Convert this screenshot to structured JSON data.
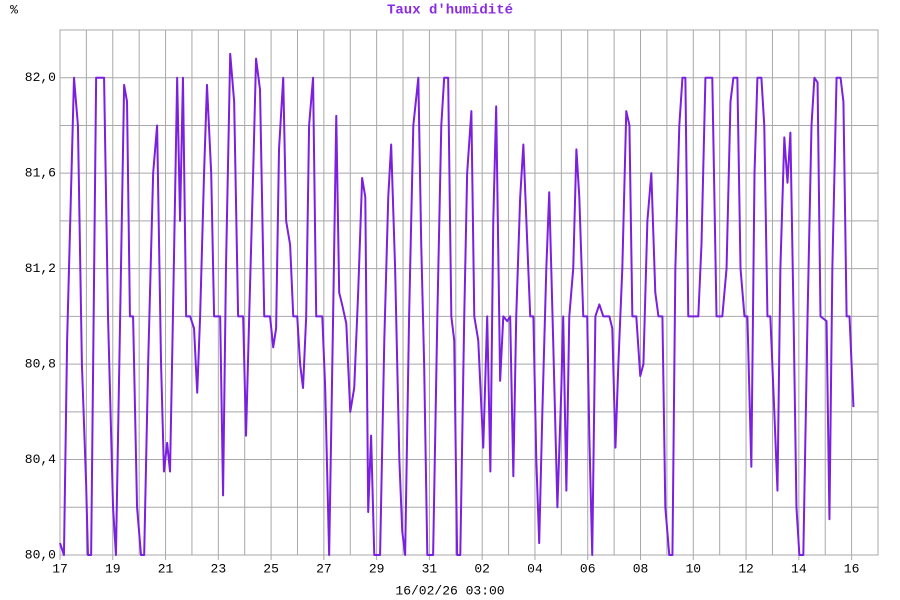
{
  "chart_data": {
    "type": "line",
    "title": "Taux d'humidité",
    "y_unit": "%",
    "xlabel": "16/02/26 03:00",
    "xlim": [
      0,
      31
    ],
    "ylim": [
      80,
      82.2
    ],
    "xticks": [
      {
        "value": 0,
        "label": "17"
      },
      {
        "value": 2,
        "label": "19"
      },
      {
        "value": 4,
        "label": "21"
      },
      {
        "value": 6,
        "label": "23"
      },
      {
        "value": 8,
        "label": "25"
      },
      {
        "value": 10,
        "label": "27"
      },
      {
        "value": 12,
        "label": "29"
      },
      {
        "value": 14,
        "label": "31"
      },
      {
        "value": 16,
        "label": "02"
      },
      {
        "value": 18,
        "label": "04"
      },
      {
        "value": 20,
        "label": "06"
      },
      {
        "value": 22,
        "label": "08"
      },
      {
        "value": 24,
        "label": "10"
      },
      {
        "value": 26,
        "label": "12"
      },
      {
        "value": 28,
        "label": "14"
      },
      {
        "value": 30,
        "label": "16"
      }
    ],
    "xgrid": [
      1,
      3,
      5,
      7,
      9,
      11,
      13,
      15,
      17,
      19,
      21,
      23,
      25,
      27,
      29,
      31
    ],
    "yticks": [
      {
        "value": 80,
        "label": "80,0"
      },
      {
        "value": 80.4,
        "label": "80,4"
      },
      {
        "value": 80.8,
        "label": "80,8"
      },
      {
        "value": 81.2,
        "label": "81,2"
      },
      {
        "value": 81.6,
        "label": "81,6"
      },
      {
        "value": 82,
        "label": "82,0"
      }
    ],
    "ygrid": [
      80.2,
      80.6,
      81.0,
      81.4,
      81.8,
      82.2
    ],
    "grid": true,
    "x": [
      0,
      0.15,
      0.27,
      0.53,
      0.68,
      0.83,
      0.99,
      1.06,
      1.18,
      1.37,
      1.67,
      1.82,
      2.01,
      2.12,
      2.28,
      2.43,
      2.54,
      2.65,
      2.77,
      2.92,
      3.07,
      3.19,
      3.34,
      3.53,
      3.68,
      3.83,
      3.94,
      4.06,
      4.17,
      4.28,
      4.44,
      4.55,
      4.66,
      4.78,
      4.93,
      5.08,
      5.2,
      5.31,
      5.46,
      5.57,
      5.73,
      5.84,
      6.07,
      6.18,
      6.29,
      6.45,
      6.6,
      6.75,
      6.94,
      7.05,
      7.17,
      7.32,
      7.43,
      7.58,
      7.74,
      7.96,
      8.08,
      8.19,
      8.3,
      8.46,
      8.57,
      8.72,
      8.84,
      8.99,
      9.1,
      9.21,
      9.33,
      9.44,
      9.59,
      9.71,
      9.94,
      10.05,
      10.2,
      10.35,
      10.47,
      10.58,
      10.69,
      10.85,
      11.0,
      11.15,
      11.3,
      11.45,
      11.57,
      11.68,
      11.79,
      11.91,
      12.13,
      12.29,
      12.44,
      12.55,
      12.7,
      12.86,
      12.97,
      13.08,
      13.23,
      13.39,
      13.58,
      13.69,
      13.8,
      13.92,
      14.14,
      14.3,
      14.45,
      14.56,
      14.71,
      14.83,
      14.94,
      15.05,
      15.17,
      15.32,
      15.43,
      15.59,
      15.7,
      15.85,
      16.04,
      16.19,
      16.31,
      16.42,
      16.53,
      16.68,
      16.8,
      16.95,
      17.06,
      17.18,
      17.29,
      17.44,
      17.56,
      17.71,
      17.82,
      17.94,
      18.05,
      18.16,
      18.28,
      18.43,
      18.54,
      18.69,
      18.85,
      19.0,
      19.07,
      19.19,
      19.3,
      19.45,
      19.57,
      19.68,
      19.83,
      19.98,
      20.06,
      20.17,
      20.29,
      20.44,
      20.59,
      20.82,
      20.93,
      21.05,
      21.16,
      21.31,
      21.46,
      21.58,
      21.69,
      21.84,
      21.99,
      22.11,
      22.26,
      22.41,
      22.56,
      22.68,
      22.83,
      22.94,
      23.09,
      23.21,
      23.32,
      23.47,
      23.59,
      23.7,
      23.81,
      24.19,
      24.31,
      24.46,
      24.72,
      24.88,
      25.1,
      25.26,
      25.41,
      25.52,
      25.67,
      25.79,
      25.94,
      26.05,
      26.2,
      26.32,
      26.43,
      26.58,
      26.69,
      26.81,
      26.92,
      27.07,
      27.19,
      27.3,
      27.45,
      27.57,
      27.68,
      27.8,
      27.91,
      28.02,
      28.17,
      28.33,
      28.48,
      28.59,
      28.71,
      28.82,
      29.05,
      29.16,
      29.27,
      29.43,
      29.58,
      29.69,
      29.81,
      29.92,
      30.07
    ],
    "series": [
      {
        "color": "#7b1fe0",
        "values": [
          80.05,
          80.0,
          80.9,
          82.0,
          81.8,
          80.8,
          80.3,
          80.0,
          80.0,
          82.0,
          82.0,
          81.0,
          80.2,
          80.0,
          81.0,
          81.97,
          81.9,
          81.0,
          81.0,
          80.2,
          80.0,
          80.0,
          80.8,
          81.6,
          81.8,
          80.8,
          80.35,
          80.47,
          80.35,
          81.0,
          82.0,
          81.4,
          82.0,
          81.0,
          81.0,
          80.95,
          80.68,
          81.0,
          81.6,
          81.97,
          81.6,
          81.0,
          81.0,
          80.25,
          81.2,
          82.1,
          81.9,
          81.0,
          81.0,
          80.5,
          81.0,
          81.6,
          82.08,
          81.95,
          81.0,
          81.0,
          80.87,
          80.95,
          81.7,
          82.0,
          81.4,
          81.3,
          81.0,
          81.0,
          80.8,
          80.7,
          81.0,
          81.8,
          82.0,
          81.0,
          81.0,
          80.7,
          80.0,
          81.0,
          81.84,
          81.1,
          81.05,
          80.97,
          80.6,
          80.7,
          81.1,
          81.58,
          81.5,
          80.18,
          80.5,
          80.0,
          80.0,
          80.9,
          81.5,
          81.72,
          81.2,
          80.4,
          80.1,
          80.0,
          81.0,
          81.8,
          82.0,
          81.3,
          80.8,
          80.0,
          80.0,
          81.0,
          81.8,
          82.0,
          82.0,
          81.0,
          80.9,
          80.0,
          80.0,
          81.0,
          81.6,
          81.86,
          81.0,
          80.9,
          80.45,
          81.0,
          80.35,
          81.4,
          81.88,
          80.73,
          81.0,
          80.98,
          81.0,
          80.33,
          81.0,
          81.5,
          81.72,
          81.3,
          81.0,
          81.0,
          80.4,
          80.05,
          80.6,
          81.2,
          81.52,
          80.9,
          80.2,
          80.7,
          81.0,
          80.27,
          81.0,
          81.2,
          81.7,
          81.5,
          81.0,
          81.0,
          80.5,
          80.0,
          81.0,
          81.05,
          81.0,
          81.0,
          80.95,
          80.45,
          80.8,
          81.2,
          81.86,
          81.8,
          81.0,
          81.0,
          80.75,
          80.8,
          81.4,
          81.6,
          81.1,
          81.0,
          81.0,
          80.2,
          80.0,
          80.0,
          81.2,
          81.8,
          82.0,
          82.0,
          81.0,
          81.0,
          81.3,
          82.0,
          82.0,
          81.0,
          81.0,
          81.2,
          81.9,
          82.0,
          82.0,
          81.2,
          81.0,
          81.0,
          80.37,
          81.6,
          82.0,
          82.0,
          81.8,
          81.0,
          81.0,
          80.6,
          80.27,
          81.2,
          81.75,
          81.56,
          81.77,
          81.0,
          80.2,
          80.0,
          80.0,
          81.0,
          81.8,
          82.0,
          81.98,
          81.0,
          80.98,
          80.15,
          81.2,
          82.0,
          82.0,
          81.9,
          81.0,
          81.0,
          80.62
        ]
      }
    ]
  }
}
